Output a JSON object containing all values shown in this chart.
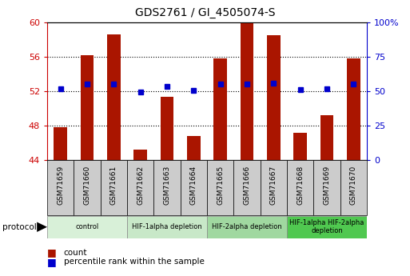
{
  "title": "GDS2761 / GI_4505074-S",
  "samples": [
    "GSM71659",
    "GSM71660",
    "GSM71661",
    "GSM71662",
    "GSM71663",
    "GSM71664",
    "GSM71665",
    "GSM71666",
    "GSM71667",
    "GSM71668",
    "GSM71669",
    "GSM71670"
  ],
  "count_values": [
    47.8,
    56.2,
    58.6,
    45.2,
    51.3,
    46.8,
    55.8,
    60.0,
    58.5,
    47.2,
    49.2,
    55.8
  ],
  "percentile_values": [
    51.5,
    55.2,
    55.4,
    49.3,
    53.3,
    50.6,
    55.1,
    55.3,
    55.5,
    50.8,
    51.9,
    54.9
  ],
  "ylim_left": [
    44,
    60
  ],
  "yticks_left": [
    44,
    48,
    52,
    56,
    60
  ],
  "ylim_right": [
    0,
    100
  ],
  "yticks_right": [
    0,
    25,
    50,
    75,
    100
  ],
  "bar_color": "#aa1500",
  "dot_color": "#0000cc",
  "groups": [
    {
      "label": "control",
      "start": 0,
      "end": 2,
      "color": "#d8f0d8"
    },
    {
      "label": "HIF-1alpha depletion",
      "start": 3,
      "end": 5,
      "color": "#c8e8c8"
    },
    {
      "label": "HIF-2alpha depletion",
      "start": 6,
      "end": 8,
      "color": "#a0d8a0"
    },
    {
      "label": "HIF-1alpha HIF-2alpha\ndepletion",
      "start": 9,
      "end": 11,
      "color": "#50c850"
    }
  ],
  "protocol_label": "protocol",
  "legend_count": "count",
  "legend_percentile": "percentile rank within the sample",
  "left_label_color": "#cc0000",
  "right_label_color": "#0000cc",
  "gray_box_color": "#cccccc",
  "right_axis_100_label": "100%"
}
